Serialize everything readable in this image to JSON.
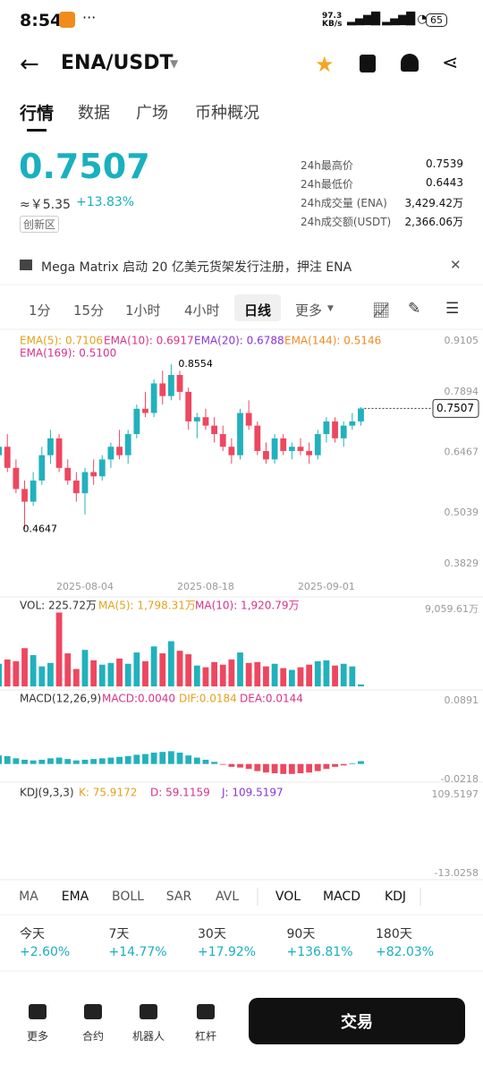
{
  "status": {
    "time": "8:54",
    "speed": "97.3",
    "speed_unit": "KB/s",
    "battery": "65"
  },
  "header": {
    "pair": "ENA/USDT"
  },
  "tabs": [
    "行情",
    "数据",
    "广场",
    "币种概况"
  ],
  "price": {
    "last": "0.7507",
    "cny": "≈￥5.35",
    "change": "+13.83%",
    "zone": "创新区"
  },
  "stats": [
    {
      "label": "24h最高价",
      "value": "0.7539"
    },
    {
      "label": "24h最低价",
      "value": "0.6443"
    },
    {
      "label": "24h成交量 (ENA)",
      "value": "3,429.42万"
    },
    {
      "label": "24h成交额(USDT)",
      "value": "2,366.06万"
    }
  ],
  "news": "Mega Matrix 启动 20 亿美元货架发行注册，押注 ENA",
  "intervals": [
    "1分",
    "15分",
    "1小时",
    "4小时",
    "日线",
    "更多"
  ],
  "ema_legend": [
    "EMA(5): 0.7106",
    "EMA(10): 0.6917",
    "EMA(20): 0.6788",
    "EMA(144): 0.5146",
    "EMA(169): 0.5100"
  ],
  "chart_data": {
    "type": "candlestick",
    "categories": [
      null,
      null,
      null,
      null,
      null,
      null,
      null,
      null,
      null,
      null,
      "2025-08-04",
      null,
      null,
      null,
      null,
      null,
      null,
      null,
      null,
      null,
      null,
      null,
      null,
      null,
      "2025-08-18",
      null,
      null,
      null,
      null,
      null,
      null,
      null,
      null,
      null,
      null,
      null,
      null,
      null,
      "2025-09-01",
      null,
      null,
      null,
      null
    ],
    "candles": [
      [
        0.64,
        0.68,
        0.62,
        0.66
      ],
      [
        0.66,
        0.69,
        0.6,
        0.61
      ],
      [
        0.61,
        0.63,
        0.55,
        0.56
      ],
      [
        0.56,
        0.58,
        0.4647,
        0.53
      ],
      [
        0.53,
        0.6,
        0.52,
        0.58
      ],
      [
        0.58,
        0.66,
        0.57,
        0.64
      ],
      [
        0.64,
        0.7,
        0.62,
        0.68
      ],
      [
        0.68,
        0.69,
        0.6,
        0.61
      ],
      [
        0.61,
        0.63,
        0.57,
        0.58
      ],
      [
        0.58,
        0.6,
        0.53,
        0.55
      ],
      [
        0.55,
        0.61,
        0.5,
        0.6
      ],
      [
        0.6,
        0.63,
        0.57,
        0.59
      ],
      [
        0.59,
        0.64,
        0.58,
        0.63
      ],
      [
        0.63,
        0.67,
        0.61,
        0.66
      ],
      [
        0.66,
        0.7,
        0.63,
        0.64
      ],
      [
        0.64,
        0.7,
        0.62,
        0.69
      ],
      [
        0.69,
        0.76,
        0.68,
        0.75
      ],
      [
        0.75,
        0.79,
        0.73,
        0.74
      ],
      [
        0.74,
        0.82,
        0.73,
        0.81
      ],
      [
        0.81,
        0.84,
        0.76,
        0.78
      ],
      [
        0.78,
        0.8554,
        0.77,
        0.83
      ],
      [
        0.83,
        0.84,
        0.77,
        0.79
      ],
      [
        0.79,
        0.8,
        0.7,
        0.72
      ],
      [
        0.72,
        0.74,
        0.68,
        0.73
      ],
      [
        0.73,
        0.75,
        0.7,
        0.71
      ],
      [
        0.71,
        0.73,
        0.67,
        0.69
      ],
      [
        0.69,
        0.71,
        0.65,
        0.66
      ],
      [
        0.66,
        0.68,
        0.62,
        0.64
      ],
      [
        0.64,
        0.75,
        0.63,
        0.74
      ],
      [
        0.74,
        0.77,
        0.7,
        0.71
      ],
      [
        0.71,
        0.72,
        0.64,
        0.65
      ],
      [
        0.65,
        0.67,
        0.62,
        0.63
      ],
      [
        0.63,
        0.69,
        0.62,
        0.68
      ],
      [
        0.68,
        0.69,
        0.64,
        0.65
      ],
      [
        0.65,
        0.67,
        0.63,
        0.66
      ],
      [
        0.66,
        0.68,
        0.64,
        0.65
      ],
      [
        0.65,
        0.67,
        0.62,
        0.64
      ],
      [
        0.64,
        0.7,
        0.63,
        0.69
      ],
      [
        0.69,
        0.73,
        0.67,
        0.72
      ],
      [
        0.72,
        0.73,
        0.67,
        0.68
      ],
      [
        0.68,
        0.72,
        0.66,
        0.71
      ],
      [
        0.71,
        0.74,
        0.7,
        0.72
      ],
      [
        0.72,
        0.7539,
        0.71,
        0.7507
      ]
    ],
    "ylim": [
      0.3829,
      0.9105
    ],
    "yticks": [
      0.9105,
      0.7894,
      0.6467,
      0.5039,
      0.3829
    ],
    "last_price": 0.7507,
    "high_label": 0.8554,
    "low_label": 0.4647,
    "up_color": "#22b1bd",
    "down_color": "#ee4760",
    "volume": {
      "legend": [
        "VOL: 225.72万",
        "MA(5): 1,798.31万",
        "MA(10): 1,920.79万"
      ],
      "values": [
        2600,
        3100,
        2900,
        4400,
        3600,
        2300,
        2700,
        8500,
        3800,
        2000,
        4200,
        3000,
        2500,
        2700,
        3200,
        2600,
        3900,
        2900,
        4600,
        3800,
        5200,
        4100,
        3700,
        2400,
        2200,
        2800,
        2500,
        3100,
        3900,
        2700,
        2800,
        2300,
        2600,
        2100,
        1900,
        2200,
        2500,
        2900,
        3000,
        2400,
        2600,
        2300,
        225.72
      ],
      "ylim": [
        0,
        9059.61
      ],
      "yticks": [
        {
          "value": 9059.61,
          "label": "9,059.61万"
        }
      ]
    },
    "macd": {
      "legend": [
        "MACD(12,26,9)",
        "MACD:0.0040",
        "DIF:0.0184",
        "DEA:0.0144"
      ],
      "values": [
        0.012,
        0.011,
        0.008,
        0.006,
        0.005,
        0.006,
        0.008,
        0.009,
        0.007,
        0.005,
        0.006,
        0.007,
        0.008,
        0.009,
        0.01,
        0.011,
        0.013,
        0.014,
        0.016,
        0.017,
        0.018,
        0.016,
        0.012,
        0.009,
        0.006,
        0.003,
        -0.001,
        -0.004,
        -0.005,
        -0.007,
        -0.01,
        -0.012,
        -0.013,
        -0.014,
        -0.014,
        -0.013,
        -0.012,
        -0.01,
        -0.007,
        -0.004,
        -0.002,
        0.001,
        0.004
      ],
      "ylim": [
        -0.0218,
        0.0891
      ],
      "yticks": [
        0.0891,
        -0.0218
      ]
    },
    "kdj": {
      "legend": [
        "KDJ(9,3,3)",
        "K: 75.9172",
        "D: 59.1159",
        "J: 109.5197"
      ],
      "ylim": [
        -13.0258,
        109.5197
      ],
      "yticks": [
        109.5197,
        -13.0258
      ]
    }
  },
  "indicator_tabs": [
    "MA",
    "EMA",
    "BOLL",
    "SAR",
    "AVL"
  ],
  "sub_tabs": [
    "VOL",
    "MACD",
    "KDJ"
  ],
  "periods": [
    {
      "label": "今天",
      "value": "+2.60%"
    },
    {
      "label": "7天",
      "value": "+14.77%"
    },
    {
      "label": "30天",
      "value": "+17.92%"
    },
    {
      "label": "90天",
      "value": "+136.81%"
    },
    {
      "label": "180天",
      "value": "+82.03%"
    }
  ],
  "nav": [
    "更多",
    "合约",
    "机器人",
    "杠杆"
  ],
  "trade_button": "交易"
}
